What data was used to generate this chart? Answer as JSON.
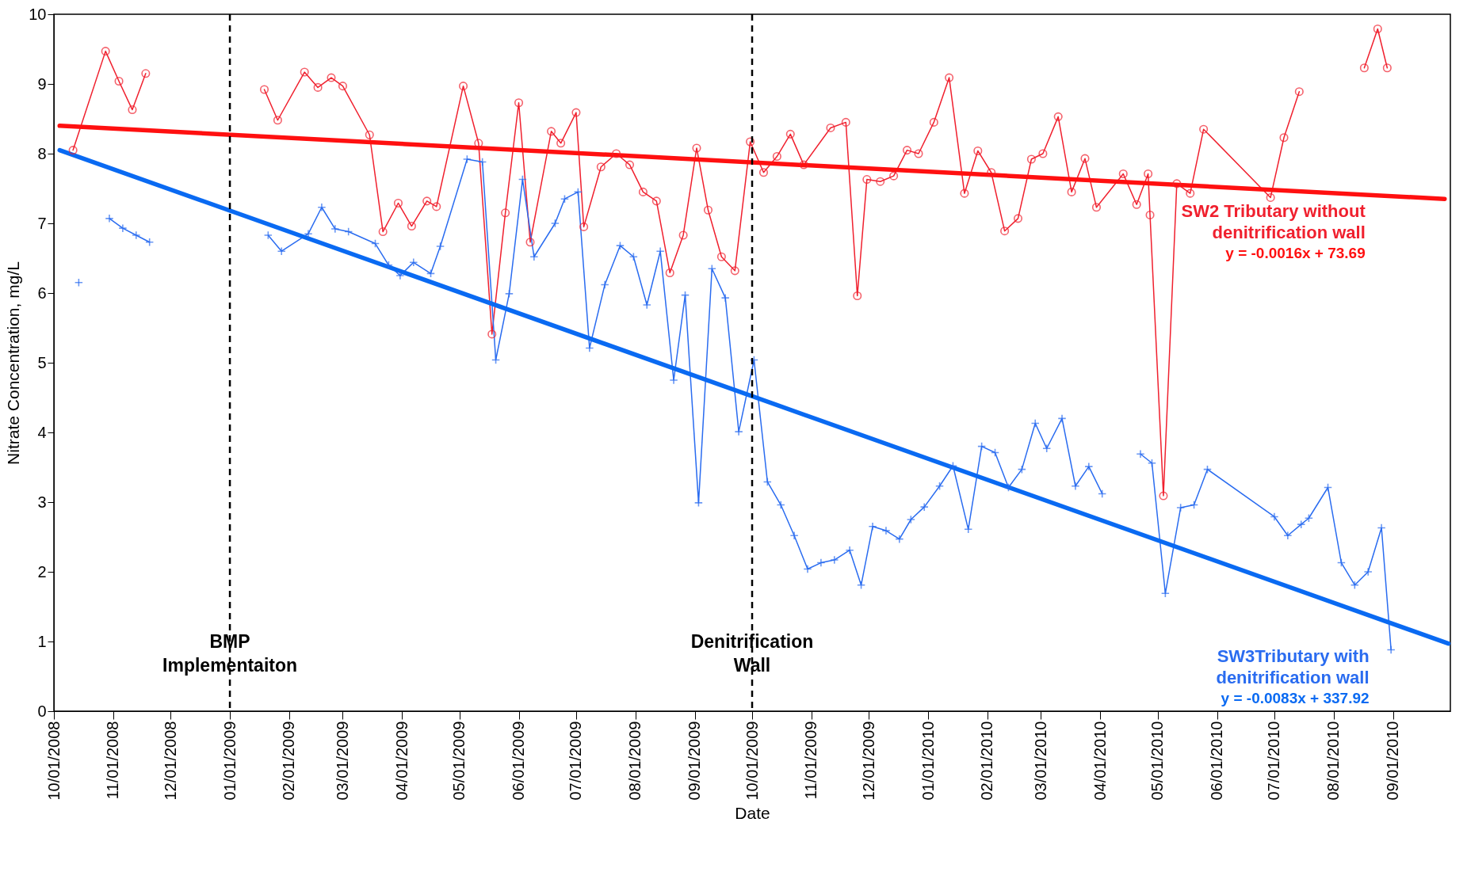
{
  "chart_data": {
    "type": "line",
    "xlabel": "Date",
    "ylabel": "Nitrate Concentration, mg/L",
    "xlim": [
      "2008-10-01",
      "2010-10-01"
    ],
    "ylim": [
      0,
      10
    ],
    "yticks": [
      0,
      1,
      2,
      3,
      4,
      5,
      6,
      7,
      8,
      9,
      10
    ],
    "xticks": [
      {
        "value": "2008-10-01",
        "label": "10/01/2008"
      },
      {
        "value": "2008-11-01",
        "label": "11/01/2008"
      },
      {
        "value": "2008-12-01",
        "label": "12/01/2008"
      },
      {
        "value": "2009-01-01",
        "label": "01/01/2009"
      },
      {
        "value": "2009-02-01",
        "label": "02/01/2009"
      },
      {
        "value": "2009-03-01",
        "label": "03/01/2009"
      },
      {
        "value": "2009-04-01",
        "label": "04/01/2009"
      },
      {
        "value": "2009-05-01",
        "label": "05/01/2009"
      },
      {
        "value": "2009-06-01",
        "label": "06/01/2009"
      },
      {
        "value": "2009-07-01",
        "label": "07/01/2009"
      },
      {
        "value": "2009-08-01",
        "label": "08/01/2009"
      },
      {
        "value": "2009-09-01",
        "label": "09/01/2009"
      },
      {
        "value": "2009-10-01",
        "label": "10/01/2009"
      },
      {
        "value": "2009-11-01",
        "label": "11/01/2009"
      },
      {
        "value": "2009-12-01",
        "label": "12/01/2009"
      },
      {
        "value": "2010-01-01",
        "label": "01/01/2010"
      },
      {
        "value": "2010-02-01",
        "label": "02/01/2010"
      },
      {
        "value": "2010-03-01",
        "label": "03/01/2010"
      },
      {
        "value": "2010-04-01",
        "label": "04/01/2010"
      },
      {
        "value": "2010-05-01",
        "label": "05/01/2010"
      },
      {
        "value": "2010-06-01",
        "label": "06/01/2010"
      },
      {
        "value": "2010-07-01",
        "label": "07/01/2010"
      },
      {
        "value": "2010-08-01",
        "label": "08/01/2010"
      },
      {
        "value": "2010-09-01",
        "label": "09/01/2010"
      }
    ],
    "grid": false,
    "legend": false,
    "series": [
      {
        "name": "SW2 Tributary without denitrification wall",
        "color": "#f0202e",
        "marker": "circle",
        "x": [
          "2008-10-11",
          "2008-10-28",
          "2008-11-04",
          "2008-11-11",
          "2008-11-18",
          "2008-12-20",
          "2009-01-19",
          "2009-01-26",
          "2009-02-09",
          "2009-02-16",
          "2009-02-23",
          "2009-03-01",
          "2009-03-15",
          "2009-03-22",
          "2009-03-30",
          "2009-04-06",
          "2009-04-14",
          "2009-04-19",
          "2009-05-03",
          "2009-05-11",
          "2009-05-18",
          "2009-05-25",
          "2009-06-01",
          "2009-06-07",
          "2009-06-18",
          "2009-06-23",
          "2009-07-01",
          "2009-07-05",
          "2009-07-14",
          "2009-07-22",
          "2009-07-29",
          "2009-08-05",
          "2009-08-12",
          "2009-08-19",
          "2009-08-26",
          "2009-09-02",
          "2009-09-08",
          "2009-09-15",
          "2009-09-22",
          "2009-09-30",
          "2009-10-07",
          "2009-10-14",
          "2009-10-21",
          "2009-10-28",
          "2009-11-11",
          "2009-11-19",
          "2009-11-25",
          "2009-11-30",
          "2009-12-07",
          "2009-12-14",
          "2009-12-21",
          "2009-12-27",
          "2010-01-04",
          "2010-01-12",
          "2010-01-20",
          "2010-01-27",
          "2010-02-03",
          "2010-02-10",
          "2010-02-17",
          "2010-02-24",
          "2010-03-02",
          "2010-03-10",
          "2010-03-17",
          "2010-03-24",
          "2010-03-30",
          "2010-04-13",
          "2010-04-20",
          "2010-04-26",
          "2010-04-27",
          "2010-05-04",
          "2010-05-11",
          "2010-05-18",
          "2010-05-25",
          "2010-06-29",
          "2010-07-06",
          "2010-07-14",
          "2010-08-01",
          "2010-08-17",
          "2010-08-24",
          "2010-08-29"
        ],
        "values": [
          8.05,
          9.47,
          9.04,
          8.63,
          9.15,
          null,
          8.92,
          8.48,
          9.17,
          8.95,
          9.09,
          8.97,
          8.27,
          6.88,
          7.29,
          6.96,
          7.32,
          7.24,
          8.97,
          8.15,
          5.41,
          7.15,
          8.73,
          6.73,
          8.32,
          8.15,
          8.59,
          6.95,
          7.81,
          8.0,
          7.84,
          7.45,
          7.32,
          6.29,
          6.83,
          8.08,
          7.19,
          6.52,
          6.32,
          8.17,
          7.73,
          7.96,
          8.28,
          7.84,
          8.37,
          8.45,
          5.96,
          7.63,
          7.6,
          7.68,
          8.05,
          8.0,
          8.45,
          9.09,
          7.43,
          8.04,
          7.73,
          6.89,
          7.07,
          7.92,
          8.0,
          8.53,
          7.45,
          7.93,
          7.23,
          7.71,
          7.27,
          7.71,
          7.12,
          3.09,
          7.57,
          7.43,
          8.35,
          7.37,
          8.23,
          8.89,
          null,
          9.23,
          9.79,
          9.23
        ]
      },
      {
        "name": "SW3Tributary with denitrification wall",
        "color": "#2a6cf0",
        "marker": "cross",
        "x": [
          "2008-10-14",
          "2008-10-22",
          "2008-10-30",
          "2008-11-06",
          "2008-11-13",
          "2008-11-20",
          "2008-12-20",
          "2009-01-21",
          "2009-01-28",
          "2009-02-11",
          "2009-02-18",
          "2009-02-25",
          "2009-03-04",
          "2009-03-18",
          "2009-03-25",
          "2009-03-31",
          "2009-04-07",
          "2009-04-16",
          "2009-04-21",
          "2009-05-05",
          "2009-05-13",
          "2009-05-20",
          "2009-05-27",
          "2009-06-03",
          "2009-06-09",
          "2009-06-20",
          "2009-06-25",
          "2009-07-02",
          "2009-07-08",
          "2009-07-16",
          "2009-07-24",
          "2009-07-31",
          "2009-08-07",
          "2009-08-14",
          "2009-08-21",
          "2009-08-27",
          "2009-09-03",
          "2009-09-10",
          "2009-09-17",
          "2009-09-24",
          "2009-10-02",
          "2009-10-09",
          "2009-10-16",
          "2009-10-23",
          "2009-10-30",
          "2009-11-06",
          "2009-11-13",
          "2009-11-21",
          "2009-11-27",
          "2009-12-03",
          "2009-12-10",
          "2009-12-17",
          "2009-12-23",
          "2009-12-30",
          "2010-01-07",
          "2010-01-14",
          "2010-01-22",
          "2010-01-29",
          "2010-02-05",
          "2010-02-12",
          "2010-02-19",
          "2010-02-26",
          "2010-03-04",
          "2010-03-12",
          "2010-03-19",
          "2010-03-26",
          "2010-04-02",
          "2010-04-12",
          "2010-04-22",
          "2010-04-28",
          "2010-05-05",
          "2010-05-13",
          "2010-05-20",
          "2010-05-27",
          "2010-07-01",
          "2010-07-08",
          "2010-07-15",
          "2010-07-19",
          "2010-07-29",
          "2010-08-05",
          "2010-08-12",
          "2010-08-19",
          "2010-08-26",
          "2010-08-31"
        ],
        "values": [
          6.15,
          null,
          7.07,
          6.93,
          6.83,
          6.73,
          null,
          6.83,
          6.6,
          6.85,
          7.23,
          6.92,
          6.88,
          6.71,
          6.4,
          6.25,
          6.44,
          6.28,
          6.67,
          7.92,
          7.88,
          5.04,
          5.99,
          7.63,
          6.52,
          7.0,
          7.35,
          7.45,
          5.21,
          6.12,
          6.68,
          6.52,
          5.83,
          6.6,
          4.75,
          5.97,
          2.99,
          6.35,
          5.93,
          4.01,
          5.04,
          3.29,
          2.96,
          2.52,
          2.04,
          2.13,
          2.17,
          2.31,
          1.81,
          2.65,
          2.59,
          2.47,
          2.75,
          2.93,
          3.23,
          3.52,
          2.61,
          3.8,
          3.71,
          3.21,
          3.47,
          4.13,
          3.77,
          4.2,
          3.23,
          3.51,
          3.12,
          null,
          3.69,
          3.56,
          1.69,
          2.92,
          2.96,
          3.47,
          2.79,
          2.52,
          2.68,
          2.77,
          3.21,
          2.13,
          1.81,
          2.0,
          2.63,
          0.88
        ]
      },
      {
        "color": "#ff1010",
        "marker": "none",
        "x": [
          "2008-10-04",
          "2010-09-28"
        ],
        "values": [
          8.4,
          7.35
        ]
      },
      {
        "color": "#0a6af2",
        "marker": "none",
        "x": [
          "2008-10-04",
          "2010-09-30"
        ],
        "values": [
          8.05,
          0.97
        ]
      }
    ],
    "ref_lines": [
      {
        "axis": "x",
        "value": "2009-01-01",
        "label": "BMP Implementaiton",
        "color": "#000000",
        "line_style": "dashed"
      },
      {
        "axis": "x",
        "value": "2009-10-01",
        "label": "Denitrification Wall",
        "color": "#000000",
        "line_style": "dashed"
      }
    ],
    "annotations": [
      "y = -0.0016x + 73.69",
      "y = -0.0083x + 337.92"
    ]
  }
}
